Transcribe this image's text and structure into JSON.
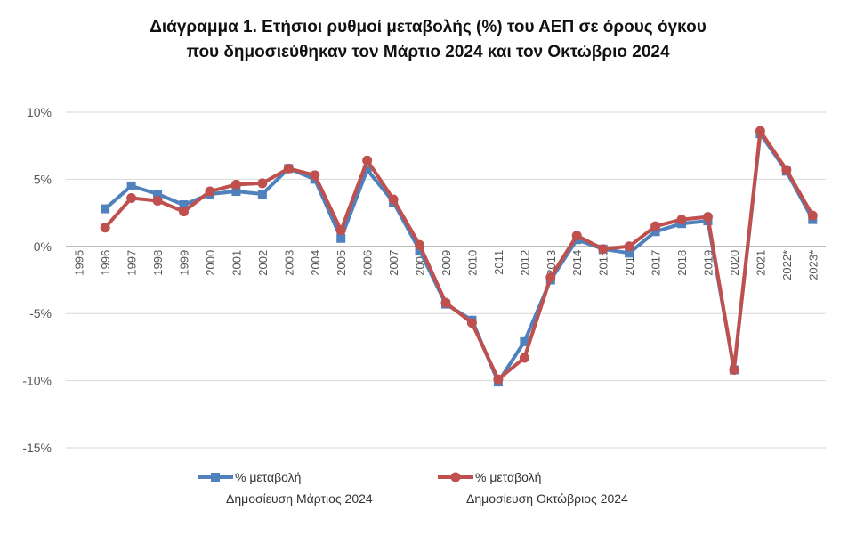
{
  "chart_data": {
    "type": "line",
    "title": "Διάγραμμα 1. Ετήσιοι ρυθμοί μεταβολής (%) του ΑΕΠ σε όρους όγκου",
    "subtitle": "που δημοσιεύθηκαν τον Μάρτιο 2024 και τον Οκτώβριο 2024",
    "xlabel": "",
    "ylabel": "",
    "ylim": [
      -15,
      10
    ],
    "yticks": [
      10,
      5,
      0,
      -5,
      -10,
      -15
    ],
    "ytick_labels": [
      "10%",
      "5%",
      "0%",
      "-5%",
      "-10%",
      "-15%"
    ],
    "categories": [
      "1995",
      "1996",
      "1997",
      "1998",
      "1999",
      "2000",
      "2001",
      "2002",
      "2003",
      "2004",
      "2005",
      "2006",
      "2007",
      "2008",
      "2009",
      "2010",
      "2011",
      "2012",
      "2013",
      "2014",
      "2015",
      "2016",
      "2017",
      "2018",
      "2019",
      "2020",
      "2021",
      "2022*",
      "2023*"
    ],
    "grid": true,
    "legend_position": "bottom",
    "series": [
      {
        "name": "% μεταβολή",
        "name_line2": "Δημοσίευση Μάρτιος 2024",
        "color": "#4f81bd",
        "marker": "square",
        "values": [
          null,
          2.8,
          4.5,
          3.9,
          3.1,
          3.9,
          4.1,
          3.9,
          5.8,
          5.0,
          0.6,
          5.7,
          3.3,
          -0.3,
          -4.3,
          -5.5,
          -10.1,
          -7.1,
          -2.5,
          0.5,
          -0.2,
          -0.5,
          1.1,
          1.7,
          1.9,
          -9.2,
          8.4,
          5.6,
          2.0
        ]
      },
      {
        "name": "% μεταβολή",
        "name_line2": "Δημοσίευση Οκτώβριος 2024",
        "color": "#c0504d",
        "marker": "circle",
        "values": [
          null,
          1.4,
          3.6,
          3.4,
          2.6,
          4.1,
          4.6,
          4.7,
          5.8,
          5.3,
          1.2,
          6.4,
          3.5,
          0.1,
          -4.2,
          -5.7,
          -9.9,
          -8.3,
          -2.3,
          0.8,
          -0.2,
          0.0,
          1.5,
          2.0,
          2.2,
          -9.2,
          8.6,
          5.7,
          2.3
        ]
      }
    ]
  }
}
